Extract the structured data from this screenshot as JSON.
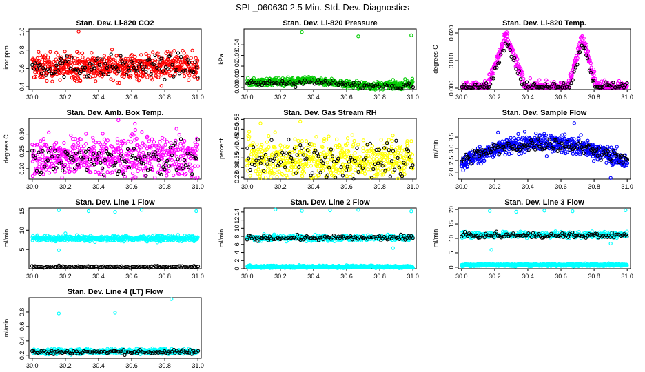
{
  "figure_title": "SPL_060630  2.5 Min. Std. Dev. Diagnostics",
  "colors": {
    "reference": "#000000",
    "red": "#ff0000",
    "green": "#00cc00",
    "magenta": "#ff00ff",
    "yellow": "#ffff00",
    "blue": "#0000ff",
    "cyan": "#00ffff"
  },
  "chart_data": [
    {
      "type": "scatter",
      "title": "Stan. Dev. Li-820 CO2",
      "xlabel": "",
      "ylabel": "Licor ppm",
      "xlim": [
        29.98,
        31.02
      ],
      "ylim": [
        0.37,
        1.03
      ],
      "xticks": [
        "30.0",
        "30.2",
        "30.4",
        "30.6",
        "30.8",
        "31.0"
      ],
      "yticks": [
        "0.4",
        "0.6",
        "0.8",
        "1.0"
      ],
      "grid": false,
      "series": [
        {
          "name": "main",
          "color": "red",
          "count": 600,
          "shape": "flat",
          "base": 0.62,
          "noise": 0.07,
          "outliers": [
            [
              30.28,
              1.0
            ],
            [
              30.27,
              0.78
            ],
            [
              30.78,
              0.41
            ]
          ]
        },
        {
          "name": "reference",
          "color": "black",
          "count": 110,
          "shape": "flat",
          "base": 0.62,
          "noise": 0.06
        }
      ]
    },
    {
      "type": "scatter",
      "title": "Stan. Dev. Li-820 Pressure",
      "xlabel": "",
      "ylabel": "kPa",
      "xlim": [
        29.98,
        31.02
      ],
      "ylim": [
        -0.002,
        0.055
      ],
      "xticks": [
        "30.0",
        "30.2",
        "30.4",
        "30.6",
        "30.8",
        "31.0"
      ],
      "yticks": [
        "0.00",
        "0.01",
        "0.02",
        "0.03",
        "0.04"
      ],
      "grid": false,
      "series": [
        {
          "name": "main",
          "color": "green",
          "count": 520,
          "shape": "wave",
          "base": 0.0045,
          "amp": 0.003,
          "noise": 0.0018,
          "outliers": [
            [
              30.33,
              0.052
            ],
            [
              30.67,
              0.048
            ],
            [
              30.99,
              0.049
            ]
          ]
        },
        {
          "name": "reference",
          "color": "black",
          "count": 90,
          "shape": "wave",
          "base": 0.0035,
          "amp": 0.002,
          "noise": 0.0015
        }
      ]
    },
    {
      "type": "scatter",
      "title": "Stan. Dev. Li-820 Temp.",
      "xlabel": "",
      "ylabel": "degrees C",
      "xlim": [
        29.98,
        31.02
      ],
      "ylim": [
        -0.0005,
        0.0215
      ],
      "xticks": [
        "30.0",
        "30.2",
        "30.4",
        "30.6",
        "30.8",
        "31.0"
      ],
      "yticks": [
        "0.000",
        "0.010",
        "0.020"
      ],
      "grid": false,
      "series": [
        {
          "name": "main",
          "color": "magenta",
          "count": 520,
          "shape": "peaks",
          "base": 0.0002,
          "peaks": [
            [
              30.27,
              0.019,
              0.12
            ],
            [
              30.73,
              0.0185,
              0.09
            ]
          ],
          "noise": 0.0012,
          "outliers": []
        },
        {
          "name": "reference",
          "color": "black",
          "count": 110,
          "shape": "peaks",
          "base": 0.0002,
          "peaks": [
            [
              30.27,
              0.017,
              0.11
            ],
            [
              30.73,
              0.016,
              0.08
            ]
          ],
          "noise": 0.001
        }
      ]
    },
    {
      "type": "scatter",
      "title": "Stan. Dev. Amb. Box Temp.",
      "xlabel": "",
      "ylabel": "degrees C",
      "xlim": [
        29.98,
        31.02
      ],
      "ylim": [
        0.17,
        0.345
      ],
      "xticks": [
        "30.0",
        "30.2",
        "30.4",
        "30.6",
        "30.8",
        "31.0"
      ],
      "yticks": [
        "0.20",
        "0.25",
        "0.30"
      ],
      "grid": false,
      "series": [
        {
          "name": "main",
          "color": "magenta",
          "count": 560,
          "shape": "flat",
          "base": 0.235,
          "noise": 0.028,
          "outliers": [
            [
              30.52,
              0.34
            ],
            [
              30.62,
              0.33
            ],
            [
              30.18,
              0.175
            ]
          ]
        },
        {
          "name": "reference",
          "color": "black",
          "count": 110,
          "shape": "flat",
          "base": 0.225,
          "noise": 0.022
        }
      ]
    },
    {
      "type": "scatter",
      "title": "Stan. Dev. Gas Stream RH",
      "xlabel": "",
      "ylabel": "percent",
      "xlim": [
        29.98,
        31.02
      ],
      "ylim": [
        0.24,
        0.555
      ],
      "xticks": [
        "30.0",
        "30.2",
        "30.4",
        "30.6",
        "30.8",
        "31.0"
      ],
      "yticks": [
        "0.25",
        "0.30",
        "0.35",
        "0.40",
        "0.45",
        "0.50",
        "0.55"
      ],
      "grid": false,
      "series": [
        {
          "name": "main",
          "color": "yellow",
          "count": 560,
          "shape": "flat",
          "base": 0.345,
          "noise": 0.055,
          "outliers": [
            [
              30.32,
              0.54
            ],
            [
              30.08,
              0.53
            ]
          ]
        },
        {
          "name": "reference",
          "color": "black",
          "count": 110,
          "shape": "flat",
          "base": 0.34,
          "noise": 0.05
        }
      ]
    },
    {
      "type": "scatter",
      "title": "Stan. Dev. Sample Flow",
      "xlabel": "",
      "ylabel": "ml/min",
      "xlim": [
        29.98,
        31.02
      ],
      "ylim": [
        1.7,
        4.3
      ],
      "xticks": [
        "30.0",
        "30.2",
        "30.4",
        "30.6",
        "30.8",
        "31.0"
      ],
      "yticks": [
        "2.0",
        "2.5",
        "3.0",
        "3.5"
      ],
      "grid": false,
      "series": [
        {
          "name": "main",
          "color": "blue",
          "count": 580,
          "shape": "arch",
          "base": 2.4,
          "peak": 3.25,
          "center": 30.5,
          "noise": 0.18,
          "outliers": [
            [
              30.68,
              4.1
            ],
            [
              30.9,
              1.75
            ],
            [
              30.22,
              3.7
            ]
          ]
        },
        {
          "name": "reference",
          "color": "black",
          "count": 120,
          "shape": "arch",
          "base": 2.5,
          "peak": 3.2,
          "center": 30.5,
          "noise": 0.14
        }
      ]
    },
    {
      "type": "scatter",
      "title": "Stan. Dev. Line 1 Flow",
      "xlabel": "",
      "ylabel": "ml/min",
      "xlim": [
        29.98,
        31.02
      ],
      "ylim": [
        0,
        15.8
      ],
      "xticks": [
        "30.0",
        "30.2",
        "30.4",
        "30.6",
        "30.8",
        "31.0"
      ],
      "yticks": [
        "5",
        "10",
        "15"
      ],
      "grid": false,
      "series": [
        {
          "name": "main",
          "color": "cyan",
          "count": 520,
          "shape": "flat",
          "base": 7.9,
          "noise": 0.35,
          "outliers": [
            [
              30.16,
              15.2
            ],
            [
              30.34,
              15.0
            ],
            [
              30.5,
              14.8
            ],
            [
              30.66,
              15.3
            ],
            [
              30.99,
              15.0
            ],
            [
              30.16,
              4.8
            ],
            [
              30.2,
              9.2
            ]
          ]
        },
        {
          "name": "reference",
          "color": "black",
          "count": 120,
          "shape": "flat",
          "base": 0.5,
          "noise": 0.12
        }
      ]
    },
    {
      "type": "scatter",
      "title": "Stan. Dev. Line 2 Flow",
      "xlabel": "",
      "ylabel": "ml/min",
      "xlim": [
        29.98,
        31.02
      ],
      "ylim": [
        0,
        15
      ],
      "xticks": [
        "30.0",
        "30.2",
        "30.4",
        "30.6",
        "30.8",
        "31.0"
      ],
      "yticks": [
        "0",
        "2",
        "4",
        "6",
        "8",
        "10",
        "12",
        "14"
      ],
      "grid": false,
      "series": [
        {
          "name": "main",
          "color": "cyan",
          "count": 560,
          "shape": "flat",
          "base": 0.5,
          "noise": 0.15,
          "outliers": []
        },
        {
          "name": "main-2",
          "color": "cyan",
          "count": 380,
          "shape": "flat",
          "base": 7.6,
          "noise": 0.35,
          "outliers": [
            [
              30.17,
              14.6
            ],
            [
              30.33,
              14.3
            ],
            [
              30.5,
              14.4
            ],
            [
              30.67,
              14.5
            ],
            [
              30.99,
              14.2
            ],
            [
              30.88,
              5.1
            ]
          ]
        },
        {
          "name": "reference",
          "color": "black",
          "count": 110,
          "shape": "flat",
          "base": 7.6,
          "noise": 0.3
        }
      ]
    },
    {
      "type": "scatter",
      "title": "Stan. Dev. Line 3 Flow",
      "xlabel": "",
      "ylabel": "ml/min",
      "xlim": [
        29.98,
        31.02
      ],
      "ylim": [
        -0.5,
        20.5
      ],
      "xticks": [
        "30.0",
        "30.2",
        "30.4",
        "30.6",
        "30.8",
        "31.0"
      ],
      "yticks": [
        "0",
        "5",
        "10",
        "15",
        "20"
      ],
      "grid": false,
      "series": [
        {
          "name": "main",
          "color": "cyan",
          "count": 560,
          "shape": "flat",
          "base": 0.8,
          "noise": 0.2,
          "outliers": []
        },
        {
          "name": "main-2",
          "color": "cyan",
          "count": 380,
          "shape": "flat",
          "base": 11.2,
          "noise": 0.5,
          "outliers": [
            [
              30.17,
              19.5
            ],
            [
              30.33,
              19.2
            ],
            [
              30.5,
              19.6
            ],
            [
              30.67,
              19.4
            ],
            [
              30.99,
              19.7
            ],
            [
              30.18,
              6.0
            ],
            [
              30.9,
              8.2
            ]
          ]
        },
        {
          "name": "reference",
          "color": "black",
          "count": 110,
          "shape": "flat",
          "base": 11.0,
          "noise": 0.45
        }
      ]
    },
    {
      "type": "scatter",
      "title": "Stan. Dev. Line 4 (LT) Flow",
      "xlabel": "",
      "ylabel": "ml/min",
      "xlim": [
        29.98,
        31.02
      ],
      "ylim": [
        0.16,
        1.0
      ],
      "xticks": [
        "30.0",
        "30.2",
        "30.4",
        "30.6",
        "30.8",
        "31.0"
      ],
      "yticks": [
        "0.2",
        "0.4",
        "0.6",
        "0.8"
      ],
      "grid": false,
      "series": [
        {
          "name": "main",
          "color": "cyan",
          "count": 520,
          "shape": "flat",
          "base": 0.255,
          "noise": 0.018,
          "outliers": [
            [
              30.16,
              0.78
            ],
            [
              30.5,
              0.79
            ],
            [
              30.84,
              0.98
            ]
          ]
        },
        {
          "name": "reference",
          "color": "black",
          "count": 110,
          "shape": "flat",
          "base": 0.245,
          "noise": 0.015
        }
      ]
    }
  ]
}
